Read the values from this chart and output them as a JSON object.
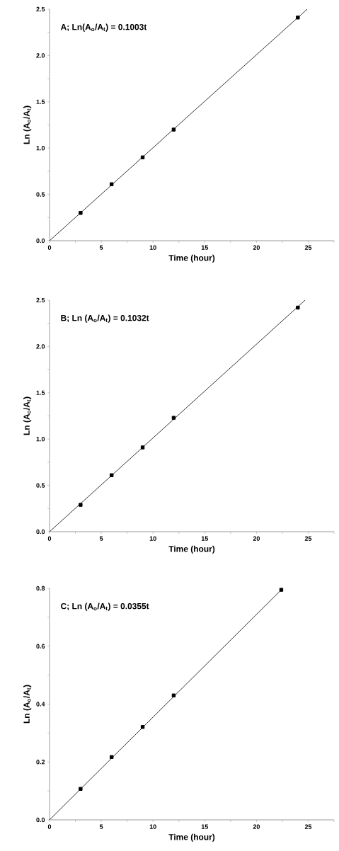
{
  "chart_data": [
    {
      "type": "scatter",
      "xlabel": "Time (hour)",
      "ylabel": "Ln (A$_{o}$/A$_{t}$)",
      "annotations": [
        "A; Ln(A$_{o}$/A$_{t}$) = 0.1003t"
      ],
      "xlim": [
        0,
        27.5
      ],
      "ylim": [
        0,
        2.5
      ],
      "xticks": [
        0,
        {
          "value": 2.5,
          "label": null
        },
        5,
        {
          "value": 7.5,
          "label": null
        },
        10,
        {
          "value": 12.5,
          "label": null
        },
        15,
        {
          "value": 17.5,
          "label": null
        },
        20,
        {
          "value": 22.5,
          "label": null
        },
        25,
        {
          "value": 27.5,
          "label": null
        }
      ],
      "yticks": [
        {
          "value": 0,
          "label": "0.0"
        },
        {
          "value": 0.25,
          "label": null
        },
        {
          "value": 0.5,
          "label": "0.5"
        },
        {
          "value": 0.75,
          "label": null
        },
        {
          "value": 1,
          "label": "1.0"
        },
        {
          "value": 1.25,
          "label": null
        },
        {
          "value": 1.5,
          "label": "1.5"
        },
        {
          "value": 1.75,
          "label": null
        },
        {
          "value": 2,
          "label": "2.0"
        },
        {
          "value": 2.25,
          "label": null
        },
        {
          "value": 2.5,
          "label": "2.5"
        }
      ],
      "series": [
        {
          "type": "line",
          "color": "#333333",
          "marker": "none",
          "x": [
            0,
            24.9
          ],
          "values": [
            0,
            2.5
          ]
        },
        {
          "color": "#000000",
          "marker": "square",
          "x": [
            3,
            6,
            9,
            12,
            24
          ],
          "values": [
            0.3,
            0.61,
            0.9,
            1.2,
            2.41
          ]
        }
      ]
    },
    {
      "type": "scatter",
      "xlabel": "Time (hour)",
      "ylabel": "Ln (A$_{o}$/A$_{t}$)",
      "annotations": [
        "B; Ln (A$_{o}$/A$_{t}$) = 0.1032t"
      ],
      "xlim": [
        0,
        27.5
      ],
      "ylim": [
        0,
        2.5
      ],
      "xticks": [
        0,
        {
          "value": 2.5,
          "label": null
        },
        5,
        {
          "value": 7.5,
          "label": null
        },
        10,
        {
          "value": 12.5,
          "label": null
        },
        15,
        {
          "value": 17.5,
          "label": null
        },
        20,
        {
          "value": 22.5,
          "label": null
        },
        25,
        {
          "value": 27.5,
          "label": null
        }
      ],
      "yticks": [
        {
          "value": 0,
          "label": "0.0"
        },
        {
          "value": 0.25,
          "label": null
        },
        {
          "value": 0.5,
          "label": "0.5"
        },
        {
          "value": 0.75,
          "label": null
        },
        {
          "value": 1,
          "label": "1.0"
        },
        {
          "value": 1.25,
          "label": null
        },
        {
          "value": 1.5,
          "label": "1.5"
        },
        {
          "value": 1.75,
          "label": null
        },
        {
          "value": 2,
          "label": "2.0"
        },
        {
          "value": 2.25,
          "label": null
        },
        {
          "value": 2.5,
          "label": "2.5"
        }
      ],
      "series": [
        {
          "type": "line",
          "color": "#333333",
          "marker": "none",
          "x": [
            0,
            24.7
          ],
          "values": [
            0,
            2.5
          ]
        },
        {
          "color": "#000000",
          "marker": "square",
          "x": [
            3,
            6,
            9,
            12,
            24
          ],
          "values": [
            0.29,
            0.61,
            0.91,
            1.23,
            2.42
          ]
        }
      ]
    },
    {
      "type": "scatter",
      "xlabel": "Time (hour)",
      "ylabel": "Ln (A$_{o}$/A$_{t}$)",
      "annotations": [
        "C; Ln (A$_{o}$/A$_{t}$) = 0.0355t"
      ],
      "xlim": [
        0,
        27.5
      ],
      "ylim": [
        0,
        0.8
      ],
      "xticks": [
        0,
        {
          "value": 2.5,
          "label": null
        },
        5,
        {
          "value": 7.5,
          "label": null
        },
        10,
        {
          "value": 12.5,
          "label": null
        },
        15,
        {
          "value": 17.5,
          "label": null
        },
        20,
        {
          "value": 22.5,
          "label": null
        },
        25,
        {
          "value": 27.5,
          "label": null
        }
      ],
      "yticks": [
        {
          "value": 0,
          "label": "0.0"
        },
        {
          "value": 0.1,
          "label": null
        },
        {
          "value": 0.2,
          "label": "0.2"
        },
        {
          "value": 0.3,
          "label": null
        },
        {
          "value": 0.4,
          "label": "0.4"
        },
        {
          "value": 0.5,
          "label": null
        },
        {
          "value": 0.6,
          "label": "0.6"
        },
        {
          "value": 0.7,
          "label": null
        },
        {
          "value": 0.8,
          "label": "0.8"
        }
      ],
      "series": [
        {
          "type": "line",
          "color": "#333333",
          "marker": "none",
          "x": [
            0,
            22.4
          ],
          "values": [
            0,
            0.795
          ]
        },
        {
          "color": "#000000",
          "marker": "square",
          "x": [
            3,
            6,
            9,
            12,
            22.4
          ],
          "values": [
            0.107,
            0.217,
            0.321,
            0.43,
            0.795
          ]
        }
      ]
    }
  ]
}
